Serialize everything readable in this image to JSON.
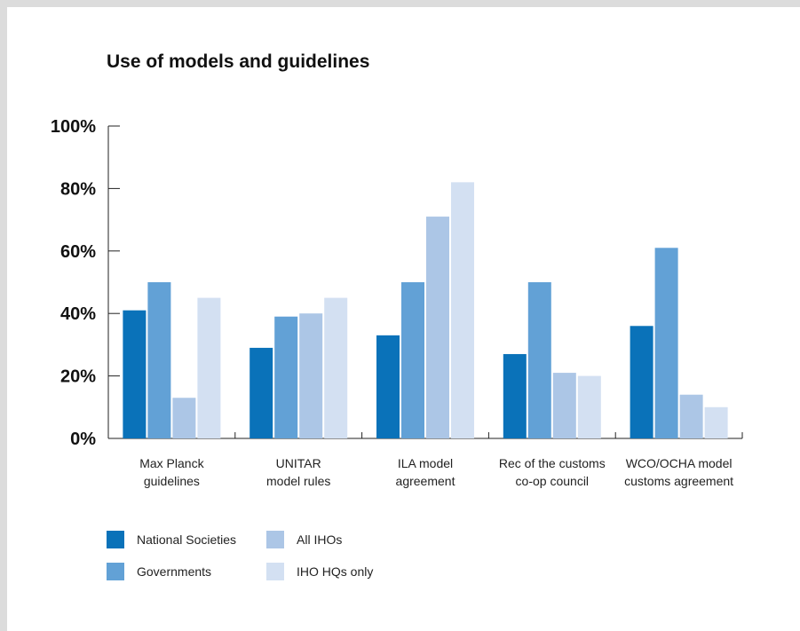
{
  "chart_data": {
    "type": "bar",
    "title": "Use of models and guidelines",
    "xlabel": "",
    "ylabel": "",
    "ylim": [
      0,
      100
    ],
    "yticks": [
      0,
      20,
      40,
      60,
      80,
      100
    ],
    "ytick_labels": [
      "0%",
      "20%",
      "40%",
      "60%",
      "80%",
      "100%"
    ],
    "grid": false,
    "legend_position": "bottom-left",
    "categories": [
      [
        "Max Planck",
        "guidelines"
      ],
      [
        "UNITAR",
        "model rules"
      ],
      [
        "ILA model",
        "agreement"
      ],
      [
        "Rec of the customs",
        "co-op council"
      ],
      [
        "WCO/OCHA model",
        "customs agreement"
      ]
    ],
    "series": [
      {
        "name": "National Societies",
        "color": "#0a72b9",
        "values": [
          41,
          29,
          33,
          27,
          36
        ]
      },
      {
        "name": "Governments",
        "color": "#62a1d6",
        "values": [
          50,
          39,
          50,
          50,
          61
        ]
      },
      {
        "name": "All IHOs",
        "color": "#acc6e6",
        "values": [
          13,
          40,
          71,
          21,
          14
        ]
      },
      {
        "name": "IHO HQs only",
        "color": "#d3e0f2",
        "values": [
          45,
          45,
          82,
          20,
          10
        ]
      }
    ]
  }
}
